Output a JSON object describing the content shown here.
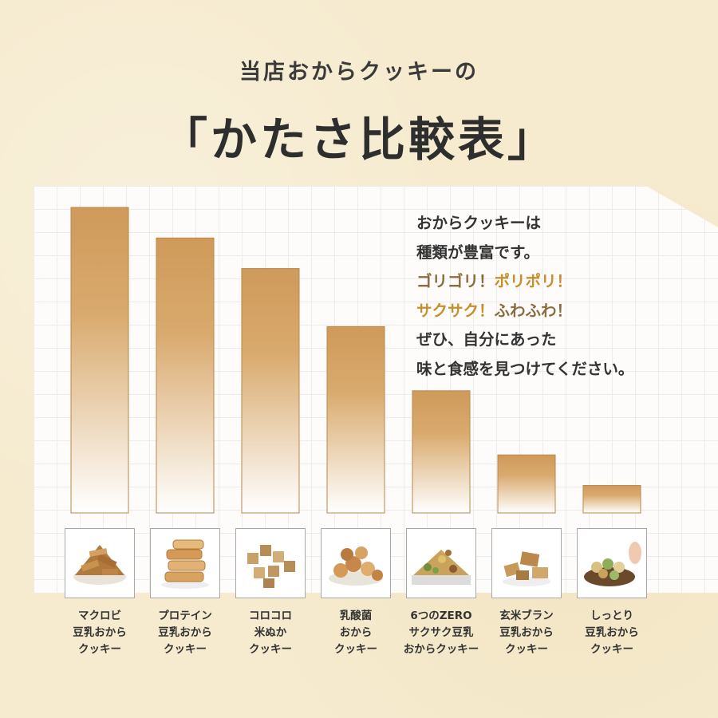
{
  "header": {
    "subtitle": "当店おからクッキーの",
    "title": "「かたさ比較表」"
  },
  "note": {
    "line1": "おからクッキーは",
    "line2": "種類が豊富です。",
    "line3a": "ゴリゴリ！",
    "line3b": "ポリポリ！",
    "line4a": "サクサク！",
    "line4b": "ふわふわ！",
    "line5": "ぜひ、自分にあった",
    "line6": "味と食感を見つけてください。"
  },
  "colors": {
    "bar_top": "#cf9a5a",
    "bar_bottom": "#ffffff",
    "accent_dark": "#8a6c3c",
    "accent_orange": "#c88e2e"
  },
  "chart_data": {
    "type": "bar",
    "title": "「かたさ比較表」",
    "xlabel": "",
    "ylabel": "",
    "ylim": [
      0,
      100
    ],
    "grid": true,
    "legend": "none",
    "categories": [
      [
        "マクロビ",
        "豆乳おから",
        "クッキー"
      ],
      [
        "プロテイン",
        "豆乳おから",
        "クッキー"
      ],
      [
        "コロコロ",
        "米ぬか",
        "クッキー"
      ],
      [
        "乳酸菌",
        "おから",
        "クッキー"
      ],
      [
        "6つのZERO",
        "サクサク豆乳",
        "おからクッキー"
      ],
      [
        "玄米ブラン",
        "豆乳おから",
        "クッキー"
      ],
      [
        "しっとり",
        "豆乳おから",
        "クッキー"
      ]
    ],
    "values": [
      100,
      90,
      80,
      61,
      40,
      19,
      9
    ],
    "icons": [
      "cookie-pile-icon",
      "cookie-stack-icon",
      "cookie-cubes-icon",
      "round-cookies-icon",
      "mixed-cookies-icon",
      "bran-cookies-icon",
      "soft-cookies-icon"
    ]
  }
}
